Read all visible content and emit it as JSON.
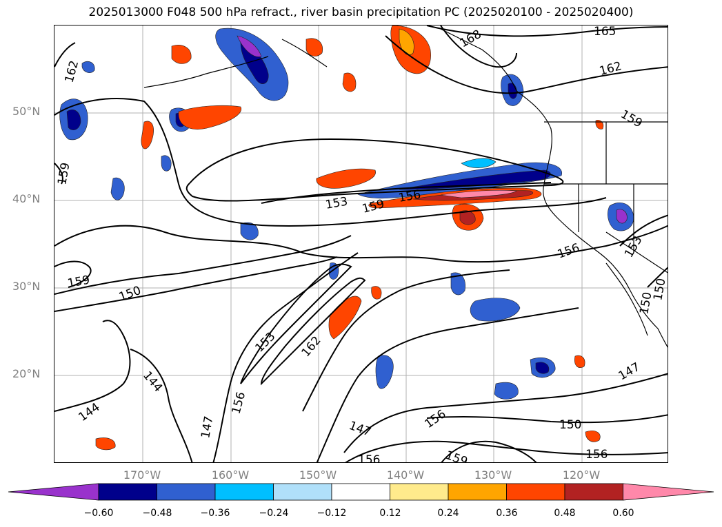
{
  "title": "2025013000 F048 500 hPa refract., river basin precipitation PC (2025020100 - 2025020400)",
  "map": {
    "lat_labels": [
      "50°N",
      "40°N",
      "30°N",
      "20°N"
    ],
    "lon_labels": [
      "170°W",
      "160°W",
      "150°W",
      "140°W",
      "130°W",
      "120°W"
    ],
    "contour_labels": [
      "165",
      "168",
      "162",
      "162",
      "159",
      "159",
      "153",
      "159",
      "156",
      "156",
      "153",
      "150",
      "159",
      "150",
      "153",
      "162",
      "156",
      "147",
      "144",
      "144",
      "147",
      "150",
      "156",
      "147",
      "156",
      "159",
      "156",
      "150"
    ]
  },
  "colorbar": {
    "colors": [
      "#9932cc",
      "#00008b",
      "#3060d0",
      "#00bfff",
      "#b0e0fa",
      "#ffffff",
      "#ffeb8c",
      "#ffa500",
      "#ff4500",
      "#b22222",
      "#ff88aa"
    ],
    "ticks": [
      "−0.60",
      "−0.48",
      "−0.36",
      "−0.24",
      "−0.12",
      "0.12",
      "0.24",
      "0.36",
      "0.48",
      "0.60"
    ]
  }
}
